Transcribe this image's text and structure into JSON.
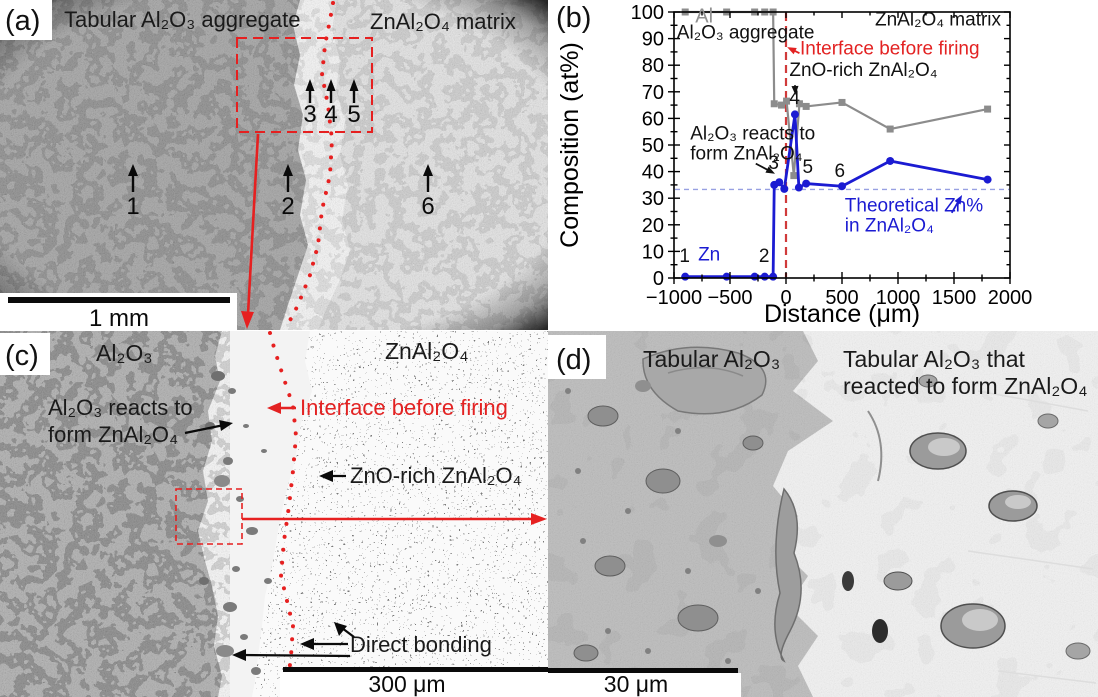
{
  "panels": {
    "a": {
      "label": "(a)",
      "left_region_label": "Tabular Al₂O₃ aggregate",
      "right_region_label": "ZnAl₂O₄ matrix",
      "point_markers": [
        "1",
        "2",
        "3",
        "4",
        "5",
        "6"
      ],
      "scale_bar_label": "1 mm"
    },
    "b": {
      "label": "(b)"
    },
    "c": {
      "label": "(c)",
      "left_region_label": "Al₂O₃",
      "right_region_label": "ZnAl₂O₄",
      "reacts_line1": "Al₂O₃ reacts to",
      "reacts_line2": "form ZnAl₂O₄",
      "interface_label": "Interface before firing",
      "zno_rich_label": "ZnO-rich ZnAl₂O₄",
      "direct_bonding_label": "Direct bonding",
      "scale_bar_label": "300 μm"
    },
    "d": {
      "label": "(d)",
      "left_region_label": "Tabular Al₂O₃",
      "right_region_label_line1": "Tabular Al₂O₃ that",
      "right_region_label_line2": "reacted to form ZnAl₂O₄",
      "scale_bar_label": "30 μm"
    }
  },
  "colors": {
    "red_accent": "#e32222",
    "interface_dash_red": "#d03a3a",
    "zn_blue": "#1b1bd2",
    "al_gray": "#8c8c8c",
    "theoretical_blue": "#97a0e2"
  },
  "chart_data": {
    "type": "line",
    "title": "",
    "xlabel": "Distance (μm)",
    "ylabel": "Composition (at%)",
    "xlim": [
      -1000,
      2000
    ],
    "ylim": [
      0,
      100
    ],
    "x_ticks": [
      -1000,
      -500,
      0,
      500,
      1000,
      1500,
      2000
    ],
    "x_tick_labels": [
      "−1000",
      "−500",
      "0",
      "500",
      "1000",
      "1500",
      "2000"
    ],
    "x_minor_step": 250,
    "y_tick_step": 10,
    "y_minor_step": 5,
    "grid": false,
    "legend_position": "none",
    "series": [
      {
        "name": "Al",
        "color": "#8c8c8c",
        "marker": "square",
        "points": [
          [
            -900,
            100
          ],
          [
            -530,
            100
          ],
          [
            -280,
            100
          ],
          [
            -190,
            100
          ],
          [
            -115,
            100
          ],
          [
            -105,
            65.5
          ],
          [
            -40,
            65
          ],
          [
            5,
            66.5
          ],
          [
            70,
            38.5
          ],
          [
            120,
            65.5
          ],
          [
            180,
            64.5
          ],
          [
            500,
            66
          ],
          [
            930,
            56
          ],
          [
            1800,
            63.5
          ]
        ]
      },
      {
        "name": "Zn",
        "color": "#1b1bd2",
        "marker": "circle",
        "points": [
          [
            -900,
            0.5
          ],
          [
            -530,
            0.5
          ],
          [
            -280,
            0.5
          ],
          [
            -190,
            0.5
          ],
          [
            -115,
            0.5
          ],
          [
            -105,
            35
          ],
          [
            -60,
            36
          ],
          [
            -15,
            33.5
          ],
          [
            80,
            61.5
          ],
          [
            115,
            34
          ],
          [
            180,
            35.5
          ],
          [
            500,
            34.5
          ],
          [
            930,
            44
          ],
          [
            1800,
            37
          ]
        ]
      }
    ],
    "reference_lines": [
      {
        "orientation": "vertical",
        "x": 0,
        "color": "#d03a3a",
        "style": "dashed",
        "label": "Interface before firing"
      },
      {
        "orientation": "horizontal",
        "y": 33.3,
        "color": "#97a0e2",
        "style": "dashed",
        "label": "Theoretical Zn% in ZnAl₂O₄"
      }
    ],
    "point_labels": [
      {
        "text": "1",
        "x": -905,
        "y": 6
      },
      {
        "text": "2",
        "x": -195,
        "y": 6
      },
      {
        "text": "3",
        "x": -110,
        "y": 41
      },
      {
        "text": "4",
        "x": 77,
        "y": 65.5
      },
      {
        "text": "5",
        "x": 195,
        "y": 39.5
      },
      {
        "text": "6",
        "x": 480,
        "y": 38
      }
    ],
    "annotations": [
      {
        "text": "Al",
        "x": -810,
        "y": 96,
        "color": "#909090",
        "anchor": "start",
        "size": 20
      },
      {
        "text": "Al₂O₃ aggregate",
        "x": -975,
        "y": 90,
        "color": "#111111",
        "anchor": "start",
        "size": 19
      },
      {
        "text": "ZnAl₂O₄ matrix",
        "x": 1920,
        "y": 95,
        "color": "#111111",
        "anchor": "end",
        "size": 19
      },
      {
        "text": "Interface before firing",
        "x": 125,
        "y": 84,
        "color": "#e32222",
        "anchor": "start",
        "size": 19
      },
      {
        "text": "ZnO-rich ZnAl₂O₄",
        "x": 30,
        "y": 76,
        "color": "#111111",
        "anchor": "start",
        "size": 19
      },
      {
        "text": "Al₂O₃ reacts to",
        "x": -855,
        "y": 52,
        "color": "#111111",
        "anchor": "start",
        "size": 19
      },
      {
        "text": "form ZnAl₂O₄",
        "x": -855,
        "y": 44.5,
        "color": "#111111",
        "anchor": "start",
        "size": 19
      },
      {
        "text": "Theoretical Zn%",
        "x": 525,
        "y": 25,
        "color": "#1b1bd2",
        "anchor": "start",
        "size": 19
      },
      {
        "text": "in ZnAl₂O₄",
        "x": 525,
        "y": 17.5,
        "color": "#1b1bd2",
        "anchor": "start",
        "size": 19
      },
      {
        "text": "Zn",
        "x": -785,
        "y": 6.5,
        "color": "#1b1bd2",
        "anchor": "start",
        "size": 19
      }
    ],
    "annotation_arrows": [
      {
        "from": [
          120,
          84.5
        ],
        "to": [
          10,
          86.8
        ],
        "color": "#e32222"
      },
      {
        "from": [
          80,
          72.5
        ],
        "to": [
          84,
          68.8
        ],
        "color": "#111111"
      },
      {
        "from": [
          -270,
          43
        ],
        "to": [
          -98,
          39.2
        ],
        "color": "#111111"
      },
      {
        "from": [
          1480,
          24.5
        ],
        "to": [
          1572,
          31.2
        ],
        "color": "#1b1bd2"
      }
    ]
  }
}
